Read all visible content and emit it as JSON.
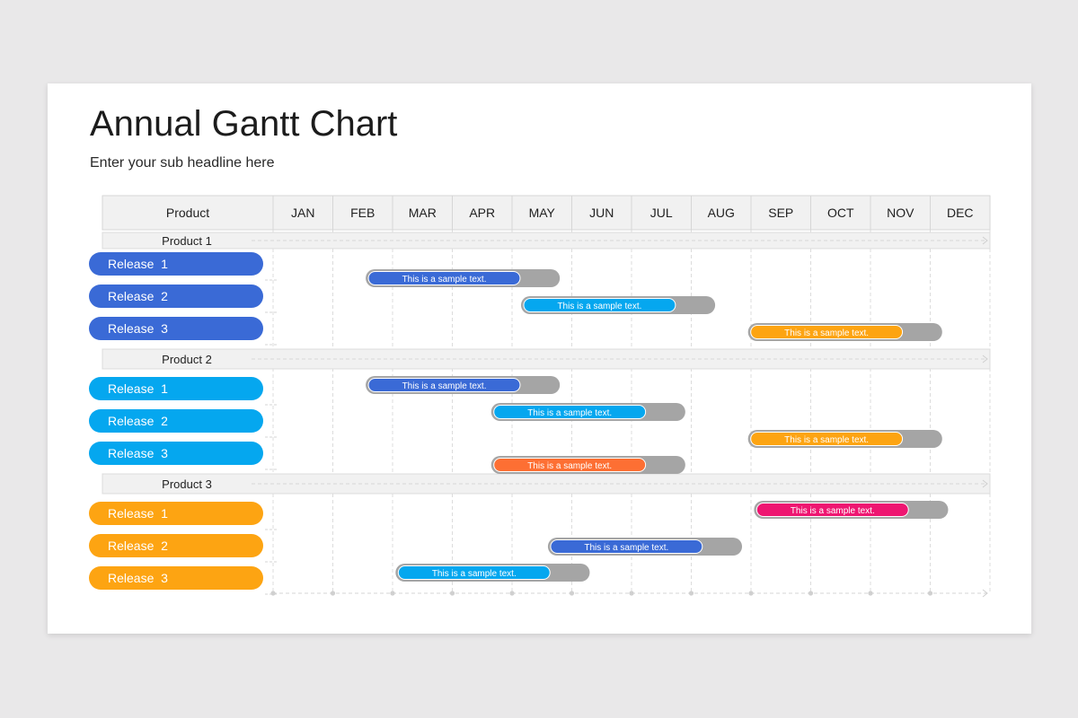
{
  "title": "Annual Gantt Chart",
  "subtitle": "Enter your sub headline here",
  "colors": {
    "blue": "#3a6ad6",
    "sky": "#05a7ef",
    "orange": "#fda412",
    "coral": "#fd6f33",
    "pink": "#ee1671",
    "track": "#a5a5a5",
    "header_bg": "#f1f1f1",
    "header_border": "#d6d6d6"
  },
  "chart_data": {
    "type": "gantt",
    "header_first": "Product",
    "months": [
      "JAN",
      "FEB",
      "MAR",
      "APR",
      "MAY",
      "JUN",
      "JUL",
      "AUG",
      "SEP",
      "OCT",
      "NOV",
      "DEC"
    ],
    "groups": [
      {
        "name": "Product 1",
        "label_color": "blue",
        "releases": [
          {
            "label": "Release  1"
          },
          {
            "label": "Release  2"
          },
          {
            "label": "Release  3"
          }
        ]
      },
      {
        "name": "Product 2",
        "label_color": "sky",
        "releases": [
          {
            "label": "Release  1"
          },
          {
            "label": "Release  2"
          },
          {
            "label": "Release  3"
          }
        ]
      },
      {
        "name": "Product 3",
        "label_color": "orange",
        "releases": [
          {
            "label": "Release  1"
          },
          {
            "label": "Release  2"
          },
          {
            "label": "Release  3"
          }
        ]
      }
    ],
    "bars": [
      {
        "text": "This is a sample text.",
        "color": "blue",
        "start": 1.55,
        "end": 4.8,
        "progress": 0.8
      },
      {
        "text": "This is a sample text.",
        "color": "sky",
        "start": 4.15,
        "end": 7.4,
        "progress": 0.8
      },
      {
        "text": "This is a sample text.",
        "color": "orange",
        "start": 7.95,
        "end": 11.2,
        "progress": 0.8
      },
      {
        "text": "This is a sample text.",
        "color": "blue",
        "start": 1.55,
        "end": 4.8,
        "progress": 0.8
      },
      {
        "text": "This is a sample text.",
        "color": "sky",
        "start": 3.65,
        "end": 6.9,
        "progress": 0.8
      },
      {
        "text": "This is a sample text.",
        "color": "orange",
        "start": 7.95,
        "end": 11.2,
        "progress": 0.8
      },
      {
        "text": "This is a sample text.",
        "color": "coral",
        "start": 3.65,
        "end": 6.9,
        "progress": 0.8
      },
      {
        "text": "This is a sample text.",
        "color": "pink",
        "start": 8.05,
        "end": 11.3,
        "progress": 0.8
      },
      {
        "text": "This is a sample text.",
        "color": "blue",
        "start": 4.6,
        "end": 7.85,
        "progress": 0.8
      },
      {
        "text": "This is a sample text.",
        "color": "sky",
        "start": 2.05,
        "end": 5.3,
        "progress": 0.8
      }
    ]
  }
}
